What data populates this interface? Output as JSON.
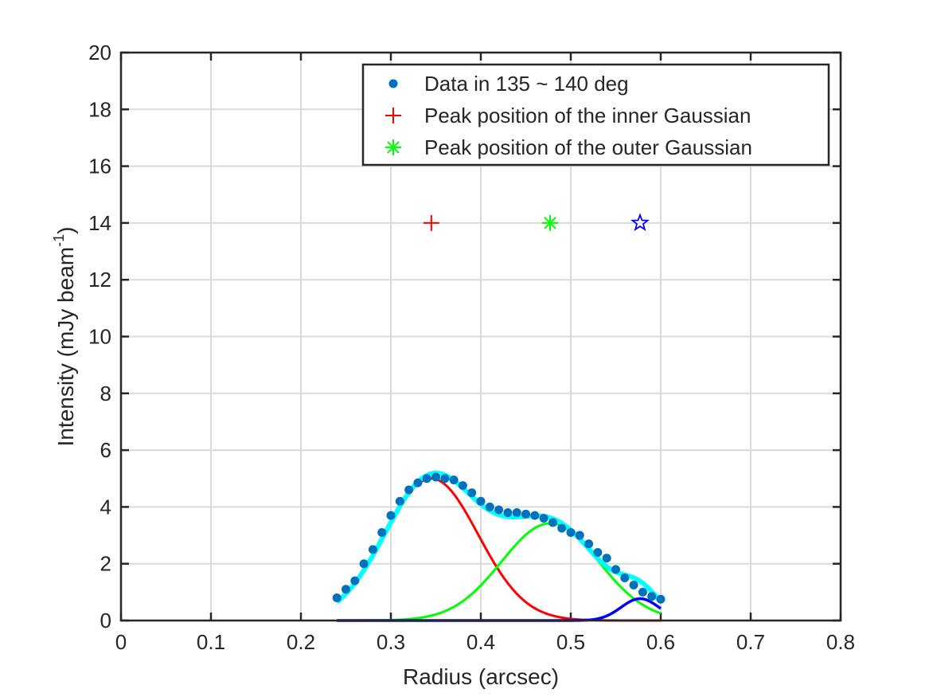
{
  "chart_data": {
    "type": "line",
    "title": "",
    "xlabel": "Radius (arcsec)",
    "ylabel_main": "Intensity (mJy beam",
    "ylabel_sup": "-1",
    "ylabel_close": ")",
    "xlim": [
      0,
      0.8
    ],
    "ylim": [
      0,
      20
    ],
    "xticks": [
      0,
      0.1,
      0.2,
      0.3,
      0.4,
      0.5,
      0.6,
      0.7,
      0.8
    ],
    "xtick_labels": [
      "0",
      "0.1",
      "0.2",
      "0.3",
      "0.4",
      "0.5",
      "0.6",
      "0.7",
      "0.8"
    ],
    "yticks": [
      0,
      2,
      4,
      6,
      8,
      10,
      12,
      14,
      16,
      18,
      20
    ],
    "ytick_labels": [
      "0",
      "2",
      "4",
      "6",
      "8",
      "10",
      "12",
      "14",
      "16",
      "18",
      "20"
    ],
    "grid": true,
    "legend_position": "top-right",
    "legend": [
      {
        "label": "Data in 135 ~ 140 deg",
        "marker": "dot",
        "color": "#0072BD"
      },
      {
        "label": "Peak position of the inner Gaussian",
        "marker": "plus",
        "color": "#FF0000"
      },
      {
        "label": "Peak position of the outer Gaussian",
        "marker": "asterisk",
        "color": "#00FF00"
      }
    ],
    "data_points": {
      "color": "#0072BD",
      "x": [
        0.24,
        0.25,
        0.26,
        0.27,
        0.28,
        0.29,
        0.3,
        0.31,
        0.32,
        0.33,
        0.34,
        0.35,
        0.36,
        0.37,
        0.38,
        0.39,
        0.4,
        0.41,
        0.42,
        0.43,
        0.44,
        0.45,
        0.46,
        0.47,
        0.48,
        0.49,
        0.5,
        0.51,
        0.52,
        0.53,
        0.54,
        0.55,
        0.56,
        0.57,
        0.58,
        0.59,
        0.6
      ],
      "y": [
        0.8,
        1.1,
        1.4,
        2.0,
        2.5,
        3.1,
        3.7,
        4.2,
        4.6,
        4.85,
        5.0,
        5.05,
        5.0,
        4.95,
        4.75,
        4.5,
        4.2,
        4.0,
        3.9,
        3.8,
        3.8,
        3.75,
        3.7,
        3.6,
        3.45,
        3.25,
        3.1,
        3.0,
        2.7,
        2.4,
        2.2,
        1.8,
        1.5,
        1.25,
        1.0,
        0.85,
        0.75
      ]
    },
    "gaussians": {
      "x_range": [
        0.24,
        0.6
      ],
      "inner": {
        "color": "#FF0000",
        "amplitude": 5.0,
        "center": 0.345,
        "sigma": 0.052
      },
      "outer": {
        "color": "#00FF00",
        "amplitude": 3.42,
        "center": 0.477,
        "sigma": 0.054
      },
      "third": {
        "color": "#0000FF",
        "amplitude": 0.77,
        "center": 0.577,
        "sigma": 0.021
      },
      "sum": {
        "color": "#00FFFF"
      }
    },
    "peak_markers": [
      {
        "name": "inner",
        "marker": "plus",
        "color": "#FF0000",
        "x": 0.345,
        "y": 14
      },
      {
        "name": "outer",
        "marker": "asterisk",
        "color": "#00FF00",
        "x": 0.477,
        "y": 14
      },
      {
        "name": "third",
        "marker": "pentagram",
        "color": "#0000FF",
        "x": 0.577,
        "y": 14
      }
    ]
  }
}
